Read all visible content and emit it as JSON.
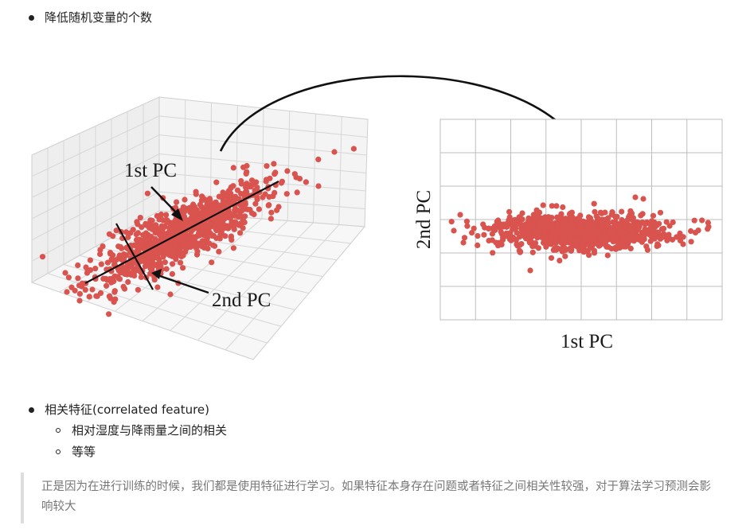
{
  "list1": {
    "item1": "降低随机变量的个数"
  },
  "list2": {
    "item1": "相关特征(correlated feature)",
    "subitems": [
      "相对湿度与降雨量之间的相关",
      "等等"
    ]
  },
  "figure": {
    "left_label_1": "1st PC",
    "left_label_2": "2nd PC",
    "right_xlabel": "1st PC",
    "right_ylabel": "2nd PC",
    "point_color": "#d9534f"
  },
  "quote": {
    "text": "正是因为在进行训练的时候，我们都是使用特征进行学习。如果特征本身存在问题或者特征之间相关性较强，对于算法学习预测会影响较大"
  }
}
